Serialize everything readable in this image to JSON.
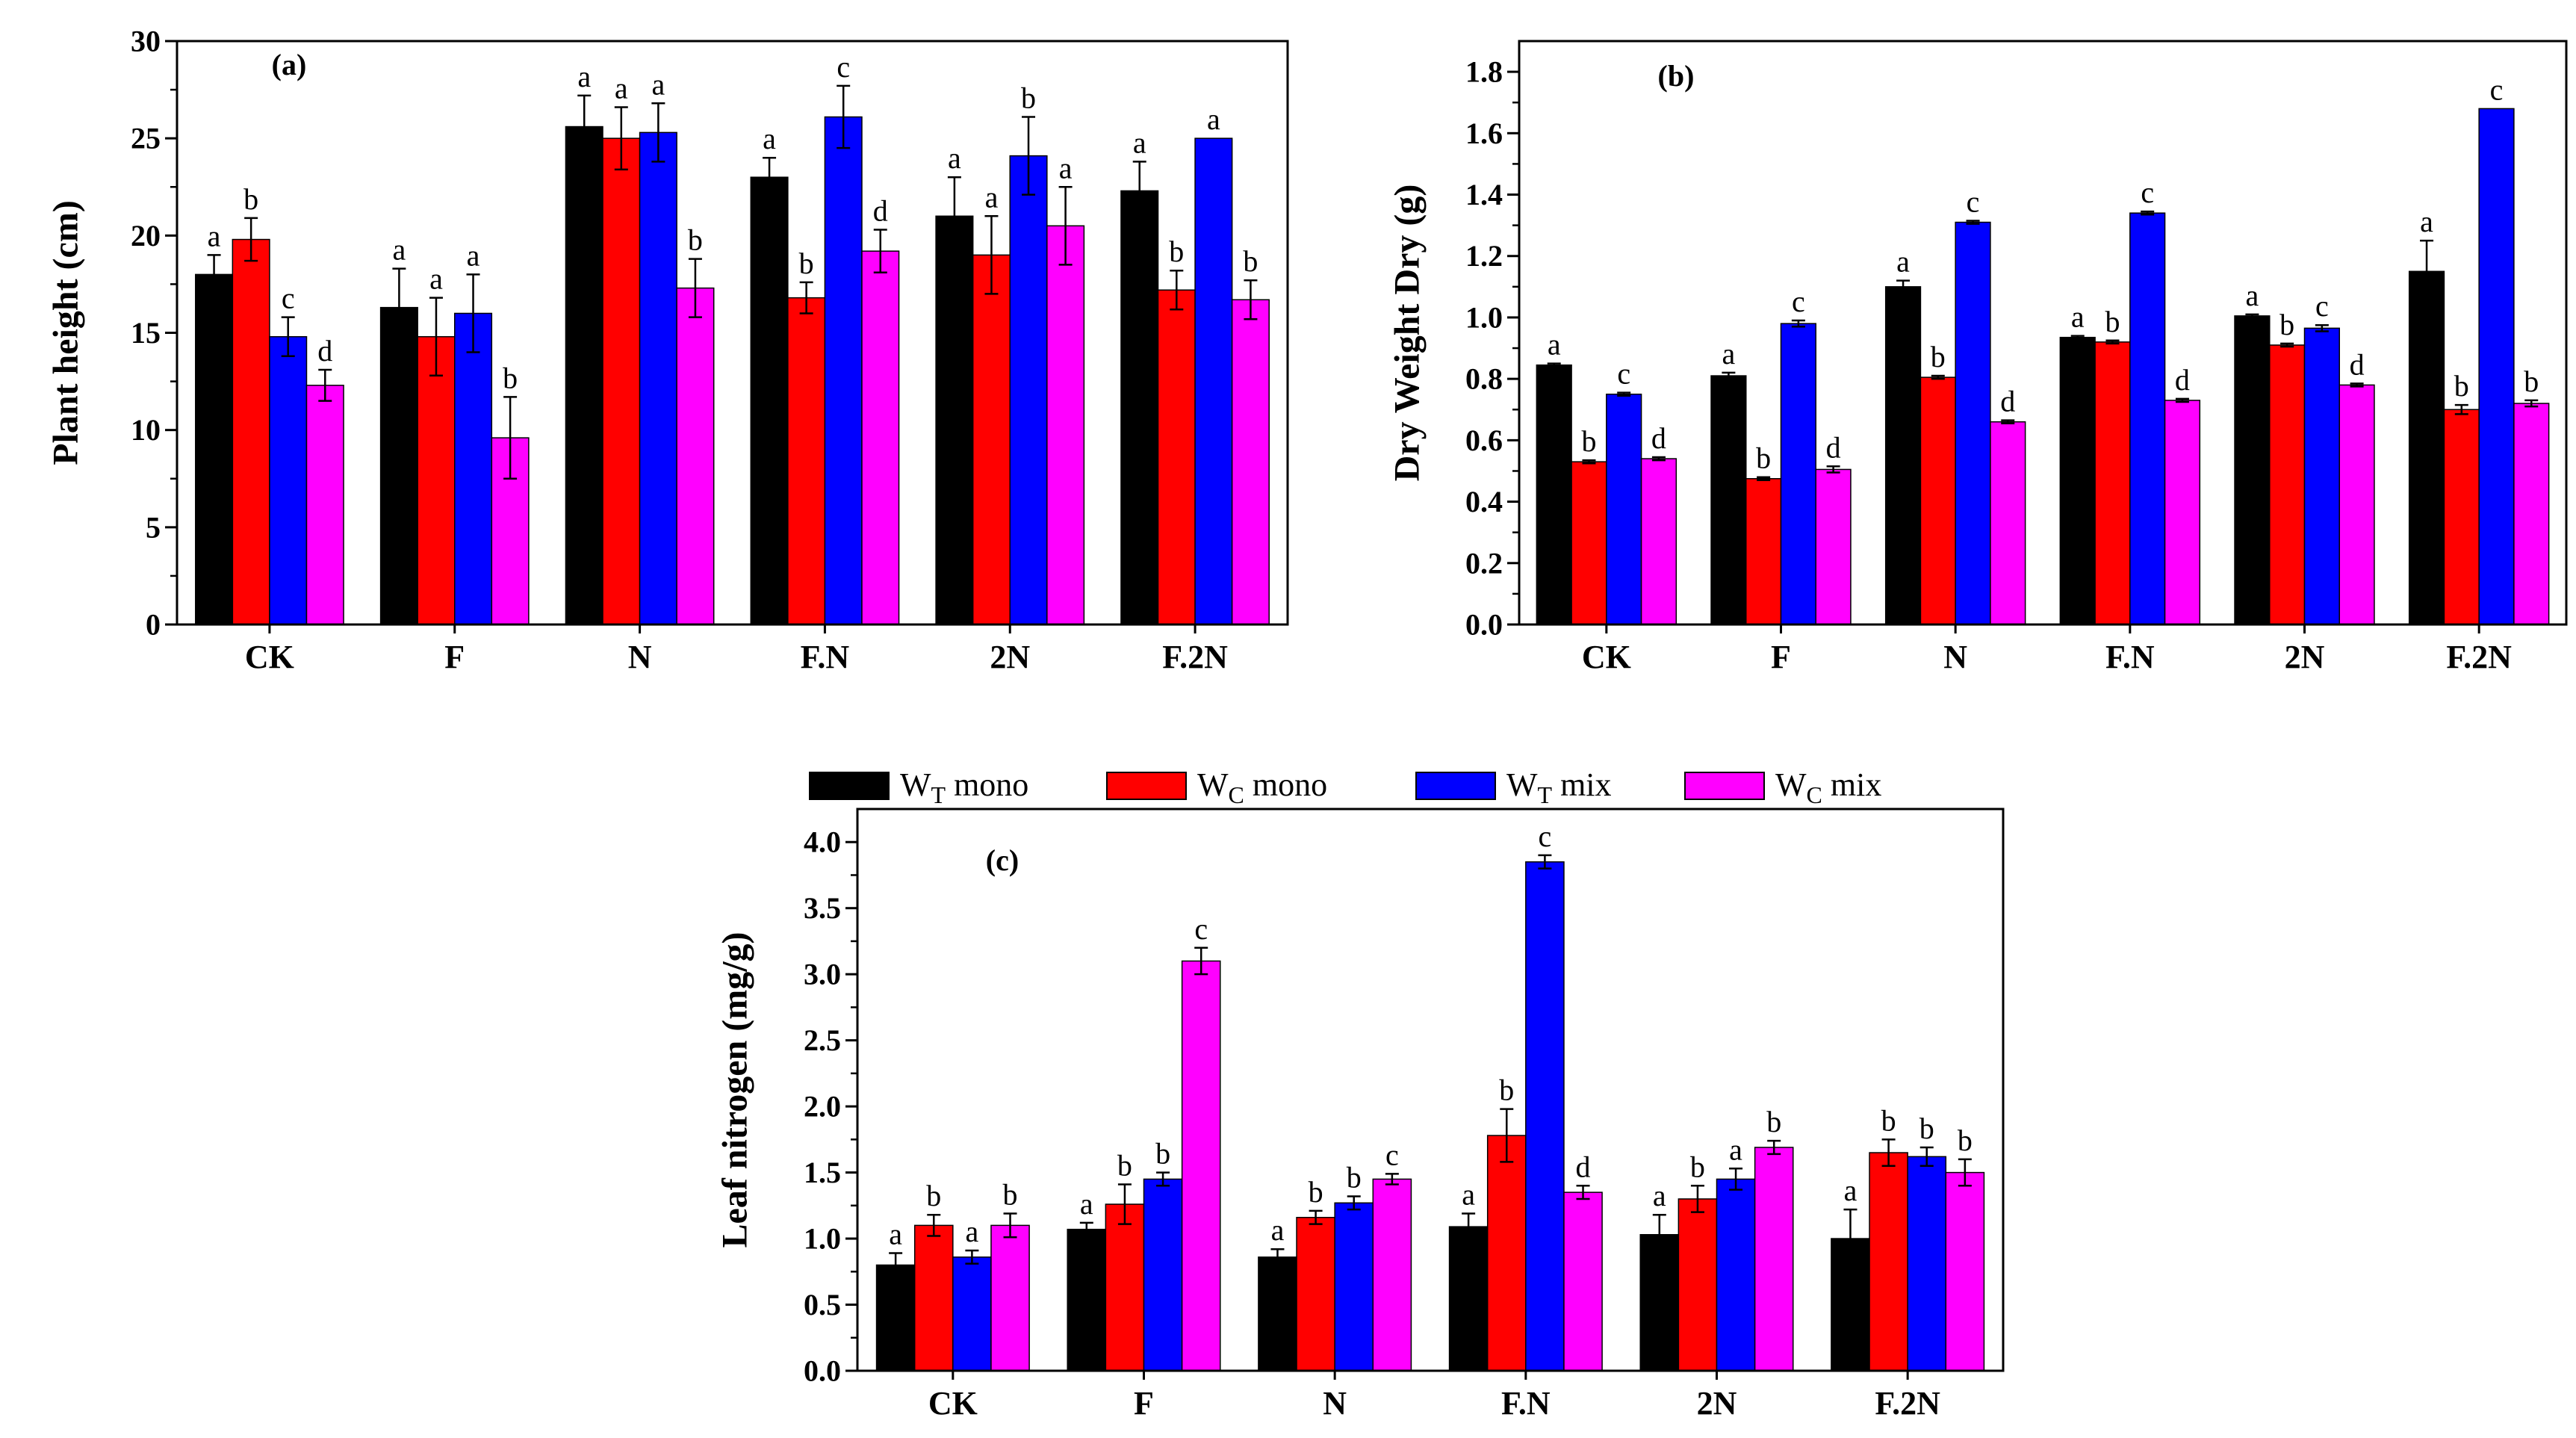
{
  "legend": {
    "items": [
      {
        "base": "W",
        "sub": "T",
        "suffix": "mono",
        "color": "#000000"
      },
      {
        "base": "W",
        "sub": "C",
        "suffix": "mono",
        "color": "#ff0000"
      },
      {
        "base": "W",
        "sub": "T",
        "suffix": "mix",
        "color": "#0000ff"
      },
      {
        "base": "W",
        "sub": "C",
        "suffix": "mix",
        "color": "#ff00ff"
      }
    ]
  },
  "chart_data": [
    {
      "type": "bar",
      "panel_label": "(a)",
      "ylabel": "Plant height (cm)",
      "categories": [
        "CK",
        "F",
        "N",
        "F.N",
        "2N",
        "F.2N"
      ],
      "ylim": [
        0,
        30
      ],
      "yticks": [
        "0",
        "5",
        "10",
        "15",
        "20",
        "25",
        "30"
      ],
      "series": [
        {
          "values": [
            18.0,
            16.3,
            25.6,
            23.0,
            21.0,
            22.3
          ],
          "errors": [
            1.0,
            2.0,
            1.6,
            1.0,
            2.0,
            1.5
          ],
          "letters": [
            "a",
            "a",
            "a",
            "a",
            "a",
            "a"
          ]
        },
        {
          "values": [
            19.8,
            14.8,
            25.0,
            16.8,
            19.0,
            17.2
          ],
          "errors": [
            1.1,
            2.0,
            1.6,
            0.8,
            2.0,
            1.0
          ],
          "letters": [
            "b",
            "a",
            "a",
            "b",
            "a",
            "b"
          ]
        },
        {
          "values": [
            14.8,
            16.0,
            25.3,
            26.1,
            24.1,
            25.0
          ],
          "errors": [
            1.0,
            2.0,
            1.5,
            1.6,
            2.0,
            0.0
          ],
          "letters": [
            "c",
            "a",
            "a",
            "c",
            "b",
            "a"
          ]
        },
        {
          "values": [
            12.3,
            9.6,
            17.3,
            19.2,
            20.5,
            16.7
          ],
          "errors": [
            0.8,
            2.1,
            1.5,
            1.1,
            2.0,
            1.0
          ],
          "letters": [
            "d",
            "b",
            "b",
            "d",
            "a",
            "b"
          ]
        }
      ]
    },
    {
      "type": "bar",
      "panel_label": "(b)",
      "ylabel": "Dry Weight Dry (g)",
      "categories": [
        "CK",
        "F",
        "N",
        "F.N",
        "2N",
        "F.2N"
      ],
      "ylim": [
        0,
        1.9
      ],
      "yticks": [
        "0.0",
        "0.2",
        "0.4",
        "0.6",
        "0.8",
        "1.0",
        "1.2",
        "1.4",
        "1.6",
        "1.8"
      ],
      "series": [
        {
          "values": [
            0.845,
            0.81,
            1.1,
            0.935,
            1.005,
            1.15
          ],
          "errors": [
            0.005,
            0.01,
            0.02,
            0.005,
            0.005,
            0.1
          ],
          "letters": [
            "a",
            "a",
            "a",
            "a",
            "a",
            "a"
          ]
        },
        {
          "values": [
            0.53,
            0.475,
            0.805,
            0.92,
            0.91,
            0.7
          ],
          "errors": [
            0.005,
            0.005,
            0.005,
            0.005,
            0.005,
            0.015
          ],
          "letters": [
            "b",
            "b",
            "b",
            "b",
            "b",
            "b"
          ]
        },
        {
          "values": [
            0.75,
            0.98,
            1.31,
            1.34,
            0.965,
            1.68
          ],
          "errors": [
            0.005,
            0.01,
            0.005,
            0.005,
            0.01,
            0.0
          ],
          "letters": [
            "c",
            "c",
            "c",
            "c",
            "c",
            "c"
          ]
        },
        {
          "values": [
            0.54,
            0.505,
            0.66,
            0.73,
            0.78,
            0.72
          ],
          "errors": [
            0.005,
            0.01,
            0.005,
            0.005,
            0.005,
            0.01
          ],
          "letters": [
            "d",
            "d",
            "d",
            "d",
            "d",
            "b"
          ]
        }
      ]
    },
    {
      "type": "bar",
      "panel_label": "(c)",
      "ylabel": "Leaf nitrogen (mg/g)",
      "categories": [
        "CK",
        "F",
        "N",
        "F.N",
        "2N",
        "F.2N"
      ],
      "ylim": [
        0,
        4.25
      ],
      "yticks": [
        "0.0",
        "0.5",
        "1.0",
        "1.5",
        "2.0",
        "2.5",
        "3.0",
        "3.5",
        "4.0"
      ],
      "series": [
        {
          "values": [
            0.8,
            1.07,
            0.86,
            1.09,
            1.03,
            1.0
          ],
          "errors": [
            0.09,
            0.05,
            0.06,
            0.1,
            0.15,
            0.22
          ],
          "letters": [
            "a",
            "a",
            "a",
            "a",
            "a",
            "a"
          ]
        },
        {
          "values": [
            1.1,
            1.26,
            1.16,
            1.78,
            1.3,
            1.65
          ],
          "errors": [
            0.08,
            0.15,
            0.05,
            0.2,
            0.1,
            0.1
          ],
          "letters": [
            "b",
            "b",
            "b",
            "b",
            "b",
            "b"
          ]
        },
        {
          "values": [
            0.86,
            1.45,
            1.27,
            3.85,
            1.45,
            1.62
          ],
          "errors": [
            0.05,
            0.05,
            0.05,
            0.05,
            0.08,
            0.07
          ],
          "letters": [
            "a",
            "b",
            "b",
            "c",
            "a",
            "b"
          ]
        },
        {
          "values": [
            1.1,
            3.1,
            1.45,
            1.35,
            1.69,
            1.5
          ],
          "errors": [
            0.09,
            0.1,
            0.04,
            0.05,
            0.05,
            0.1
          ],
          "letters": [
            "b",
            "c",
            "c",
            "d",
            "b",
            "b"
          ]
        }
      ]
    }
  ]
}
